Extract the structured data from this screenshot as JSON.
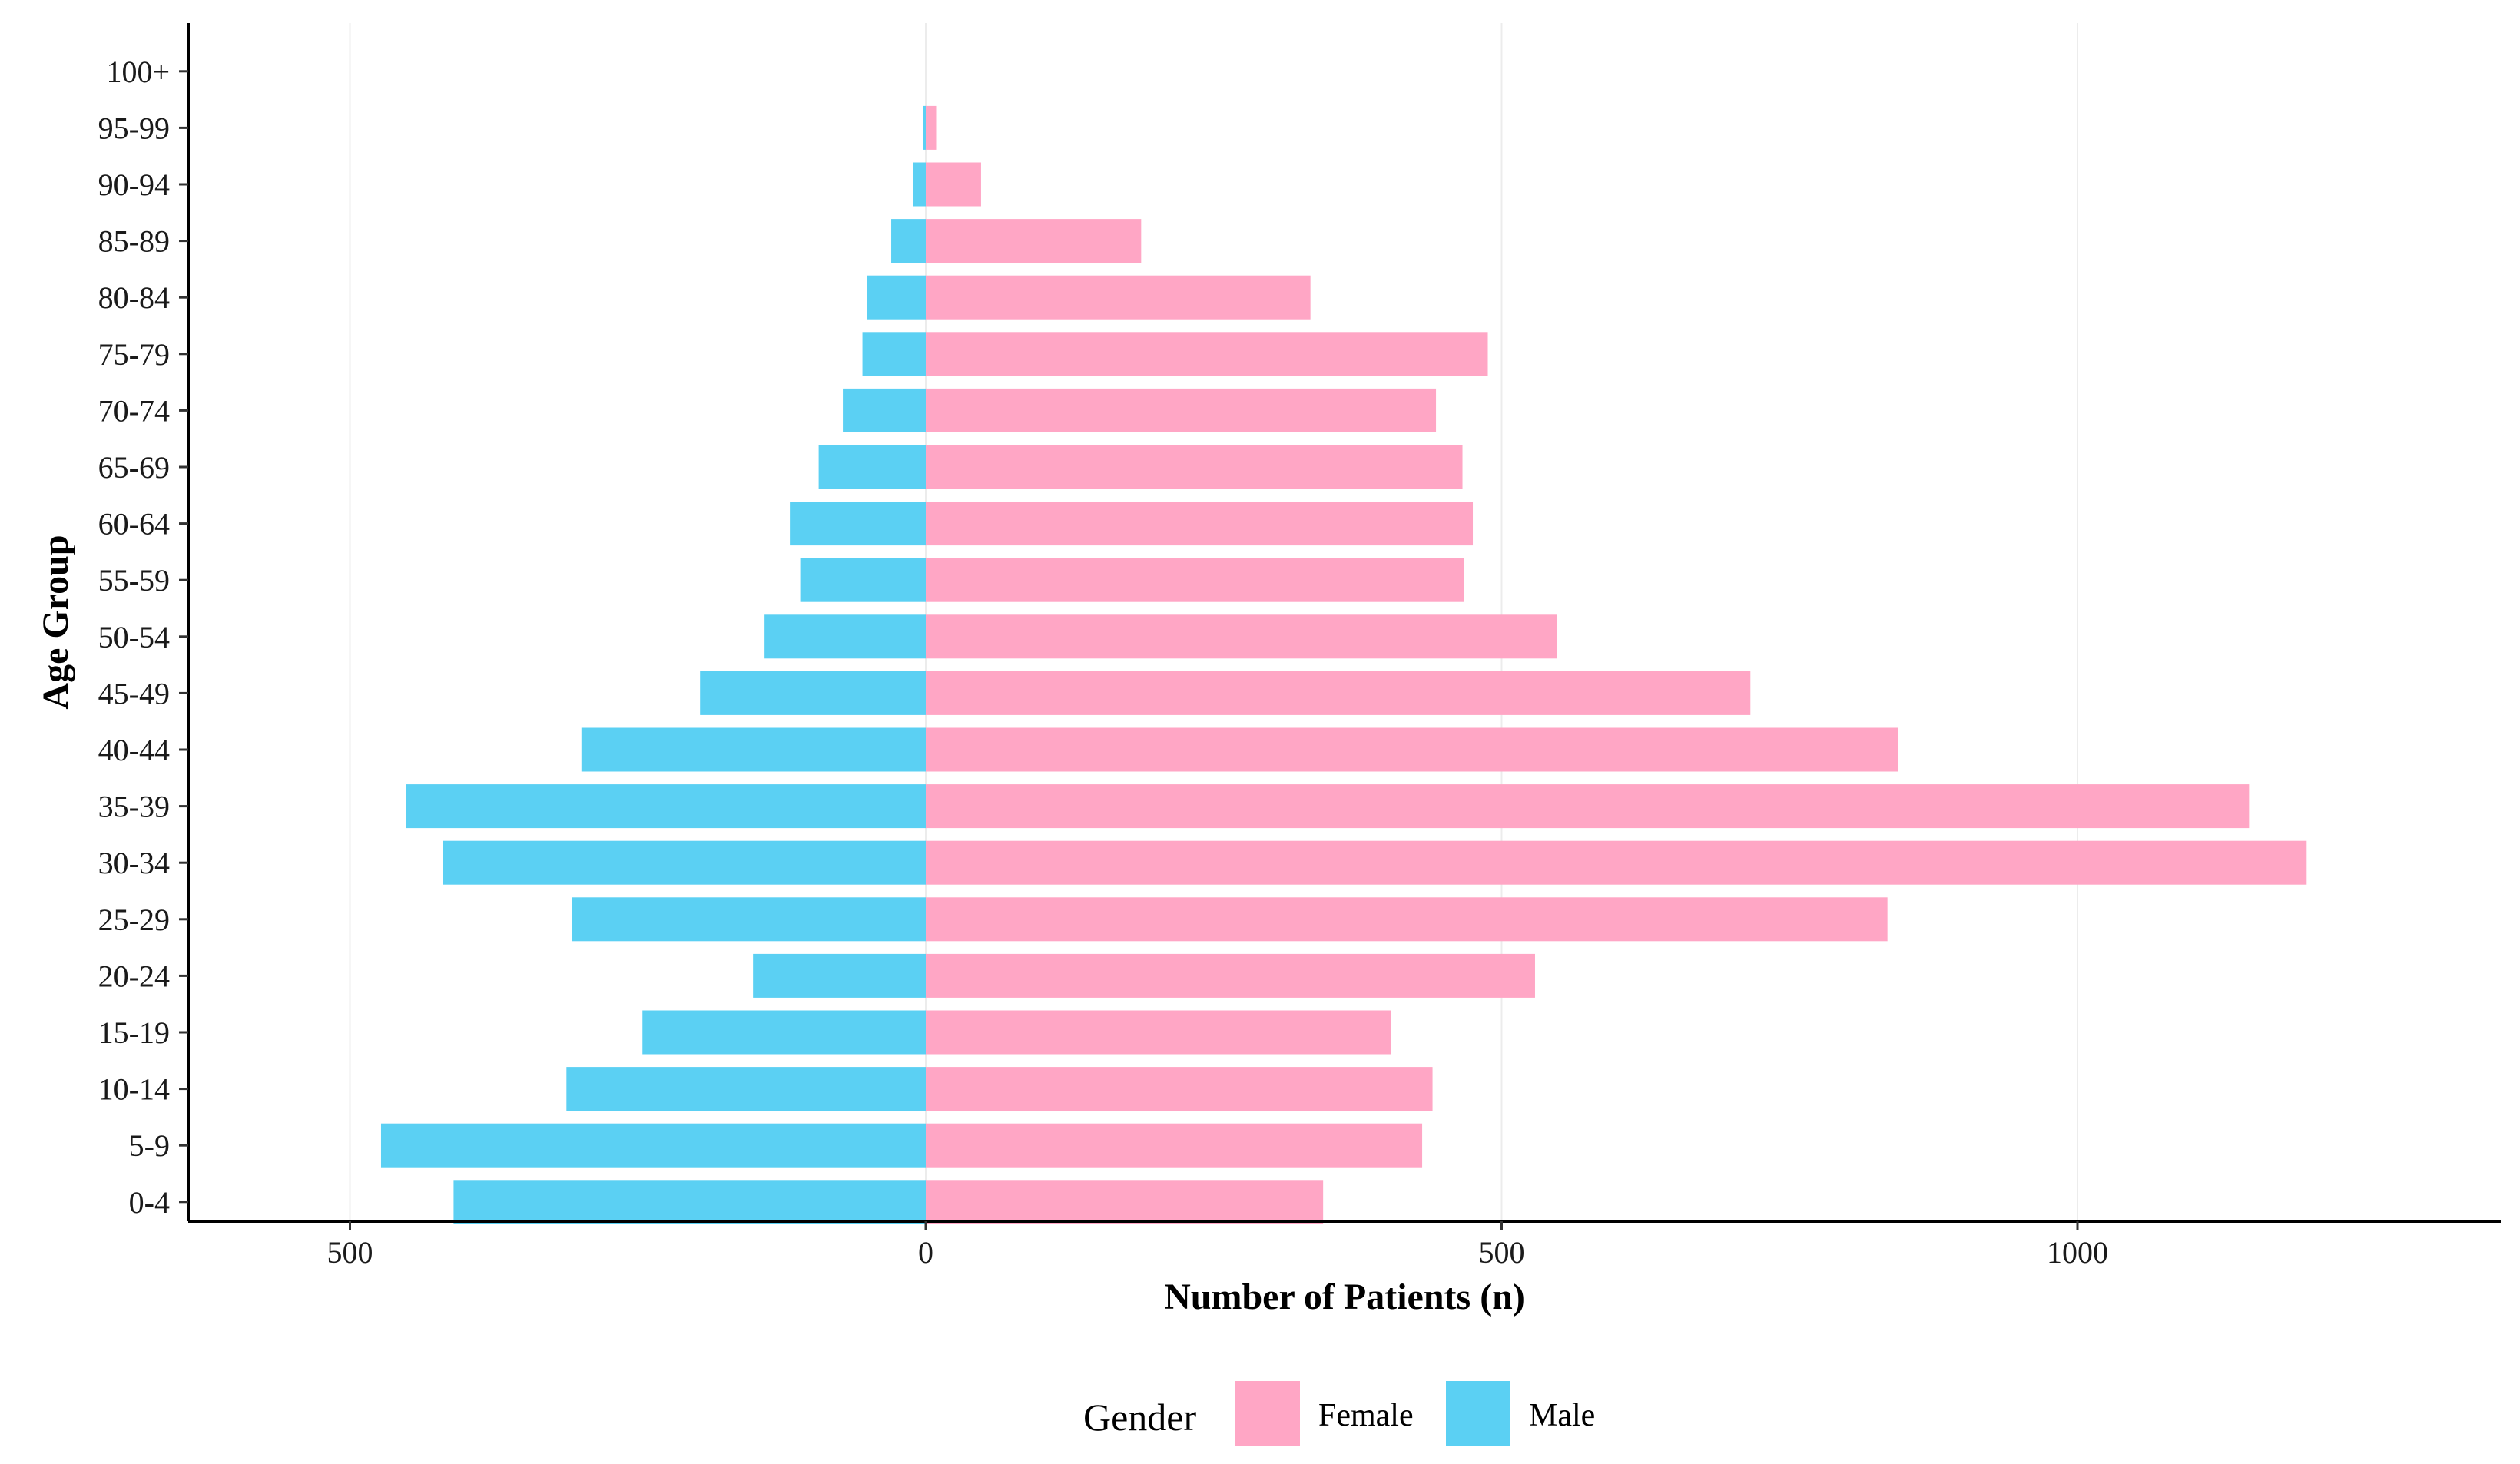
{
  "chart_data": {
    "type": "bar",
    "orientation": "horizontal",
    "subtype": "population-pyramid",
    "title": "",
    "xlabel": "Number of Patients (n)",
    "ylabel": "Age Group",
    "xlim": [
      -640,
      1370
    ],
    "x_ticks": [
      {
        "value": -500,
        "label": "500"
      },
      {
        "value": 0,
        "label": "0"
      },
      {
        "value": 500,
        "label": "500"
      },
      {
        "value": 1000,
        "label": "1000"
      }
    ],
    "grid": "vertical-major",
    "categories": [
      "0-4",
      "5-9",
      "10-14",
      "15-19",
      "20-24",
      "25-29",
      "30-34",
      "35-39",
      "40-44",
      "45-49",
      "50-54",
      "55-59",
      "60-64",
      "65-69",
      "70-74",
      "75-79",
      "80-84",
      "85-89",
      "90-94",
      "95-99",
      "100+"
    ],
    "series": [
      {
        "name": "Female",
        "color": "#FFA6C5",
        "values": [
          345,
          431,
          440,
          404,
          529,
          835,
          1199,
          1149,
          844,
          716,
          548,
          467,
          475,
          466,
          443,
          488,
          334,
          187,
          48,
          9,
          0
        ]
      },
      {
        "name": "Male",
        "color": "#5BD0F3",
        "values": [
          410,
          473,
          312,
          246,
          150,
          307,
          419,
          451,
          299,
          196,
          140,
          109,
          118,
          93,
          72,
          55,
          51,
          30,
          11,
          2,
          0
        ]
      }
    ],
    "legend": {
      "title": "Gender",
      "position": "bottom"
    }
  }
}
